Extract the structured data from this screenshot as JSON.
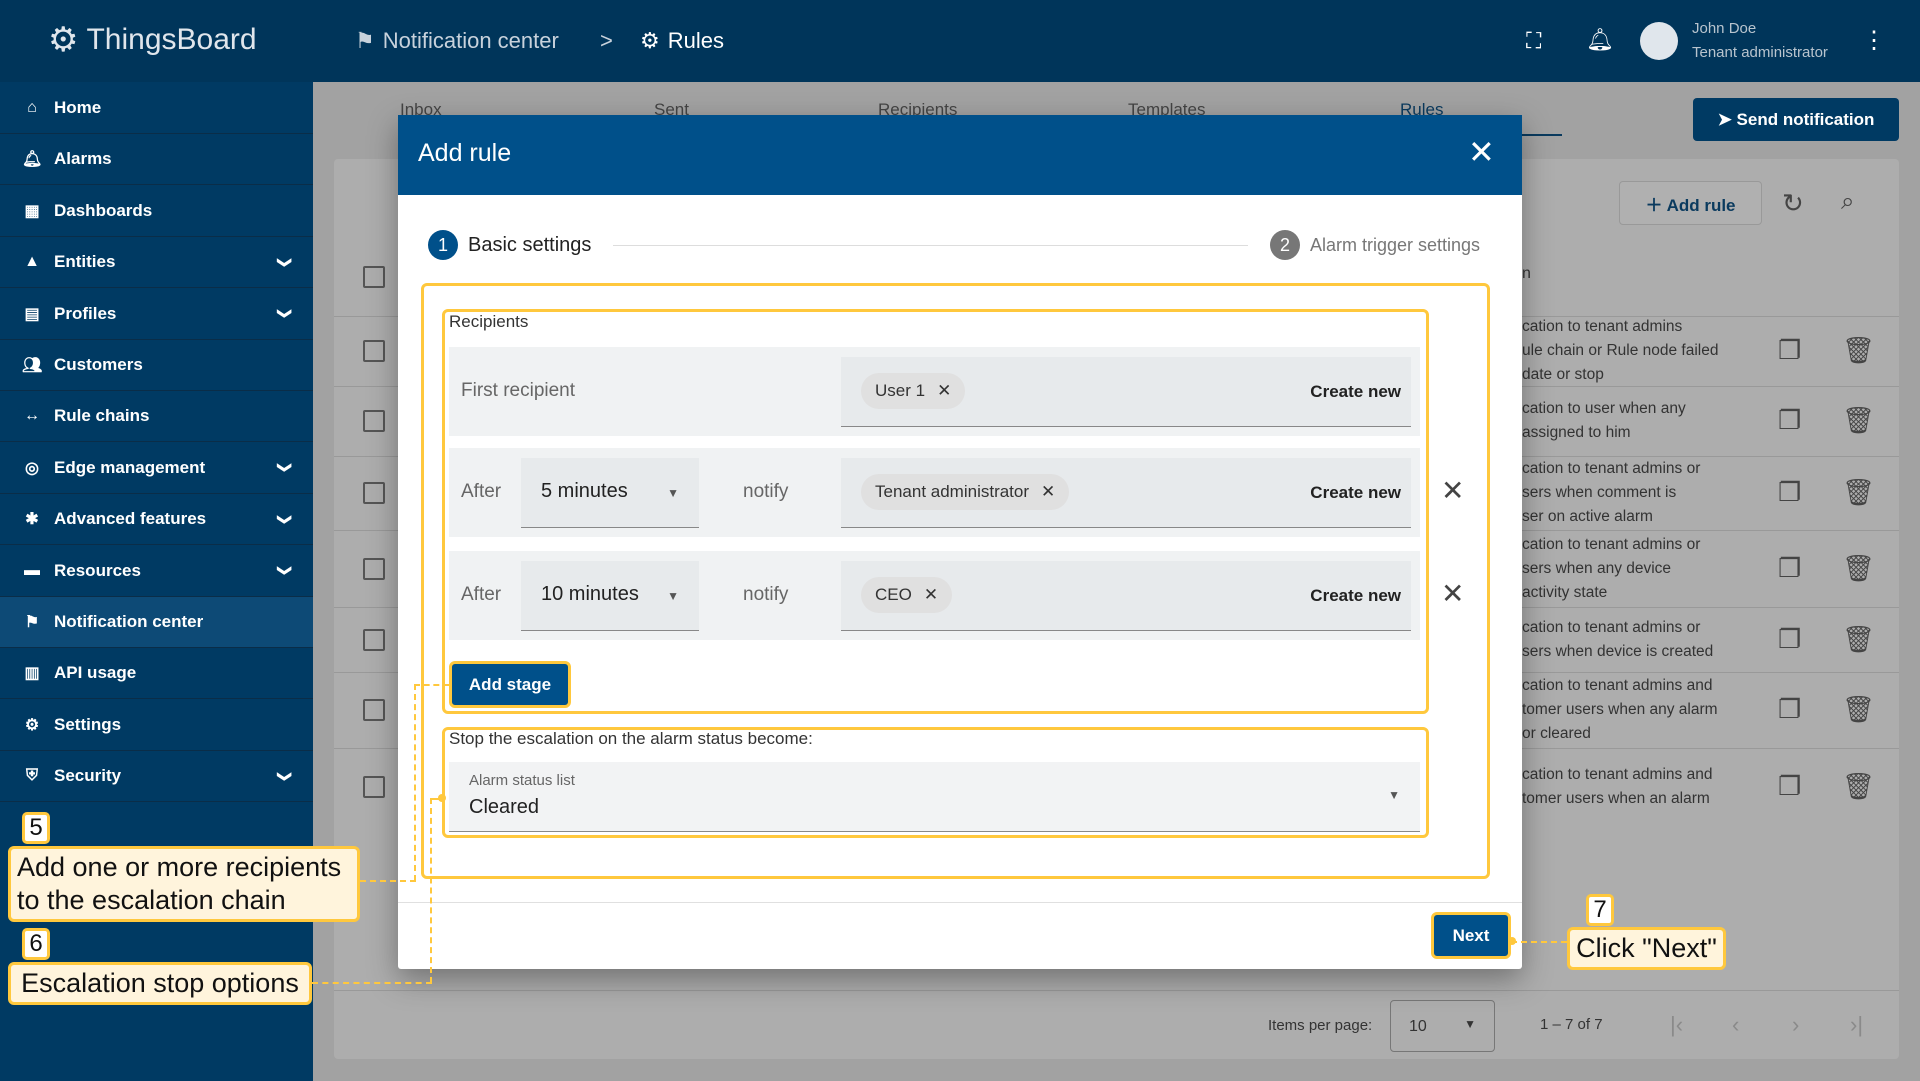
{
  "app": {
    "name": "ThingsBoard"
  },
  "breadcrumb": [
    "Notification center",
    "Rules"
  ],
  "user": {
    "name": "John Doe",
    "role": "Tenant administrator"
  },
  "sidebar": {
    "items": [
      {
        "label": "Home",
        "icon": "home-icon"
      },
      {
        "label": "Alarms",
        "icon": "bell-icon"
      },
      {
        "label": "Dashboards",
        "icon": "dashboard-icon"
      },
      {
        "label": "Entities",
        "icon": "entities-icon",
        "expandable": true
      },
      {
        "label": "Profiles",
        "icon": "profiles-icon",
        "expandable": true
      },
      {
        "label": "Customers",
        "icon": "customers-icon"
      },
      {
        "label": "Rule chains",
        "icon": "rule-chain-icon"
      },
      {
        "label": "Edge management",
        "icon": "edge-icon",
        "expandable": true
      },
      {
        "label": "Advanced features",
        "icon": "tools-icon",
        "expandable": true
      },
      {
        "label": "Resources",
        "icon": "folder-icon",
        "expandable": true
      },
      {
        "label": "Notification center",
        "icon": "notification-icon"
      },
      {
        "label": "API usage",
        "icon": "chart-icon"
      },
      {
        "label": "Settings",
        "icon": "gear-icon"
      },
      {
        "label": "Security",
        "icon": "shield-icon",
        "expandable": true
      }
    ]
  },
  "tabs": [
    "Inbox",
    "Sent",
    "Recipients",
    "Templates",
    "Rules"
  ],
  "active_tab": "Rules",
  "send_notification": "Send notification",
  "add_rule": "Add rule",
  "table": {
    "header_partial": "n",
    "rows": [
      [
        "cation to tenant admins",
        "ule chain or Rule node failed",
        "date or stop"
      ],
      [
        "cation to user when any",
        "assigned to him"
      ],
      [
        "cation to tenant admins or",
        "sers when comment is",
        "ser on active alarm"
      ],
      [
        "cation to tenant admins or",
        "sers when any device",
        " activity state"
      ],
      [
        "cation to tenant admins or",
        "sers when device is created"
      ],
      [
        "cation to tenant admins and",
        "tomer users when any alarm",
        "or cleared"
      ],
      [
        "cation to tenant admins and",
        "tomer users when an alarm"
      ]
    ]
  },
  "paginator": {
    "label": "Items per page:",
    "value": "10",
    "range": "1 – 7 of 7"
  },
  "dialog": {
    "title": "Add rule",
    "steps": [
      {
        "num": "1",
        "label": "Basic settings",
        "active": true
      },
      {
        "num": "2",
        "label": "Alarm trigger settings",
        "active": false
      }
    ],
    "recipients_label": "Recipients",
    "first_recipient": {
      "label": "First recipient",
      "chips": [
        "User 1"
      ],
      "create": "Create new"
    },
    "stages": [
      {
        "after": "After",
        "delay": "5 minutes",
        "notify": "notify",
        "chips": [
          "Tenant administrator"
        ],
        "create": "Create new"
      },
      {
        "after": "After",
        "delay": "10 minutes",
        "notify": "notify",
        "chips": [
          "CEO"
        ],
        "create": "Create new"
      }
    ],
    "add_stage": "Add stage",
    "stop_label": "Stop the escalation on the alarm status become:",
    "status_list": {
      "label": "Alarm status list",
      "value": "Cleared"
    },
    "next": "Next"
  },
  "callouts": [
    {
      "num": "5",
      "text": "Add one or more recipients to the escalation chain"
    },
    {
      "num": "6",
      "text": "Escalation stop options"
    },
    {
      "num": "7",
      "text": "Click \"Next\""
    }
  ],
  "colors": {
    "primary": "#00508a",
    "topbar": "#00355a",
    "highlight": "#ffc83d"
  }
}
